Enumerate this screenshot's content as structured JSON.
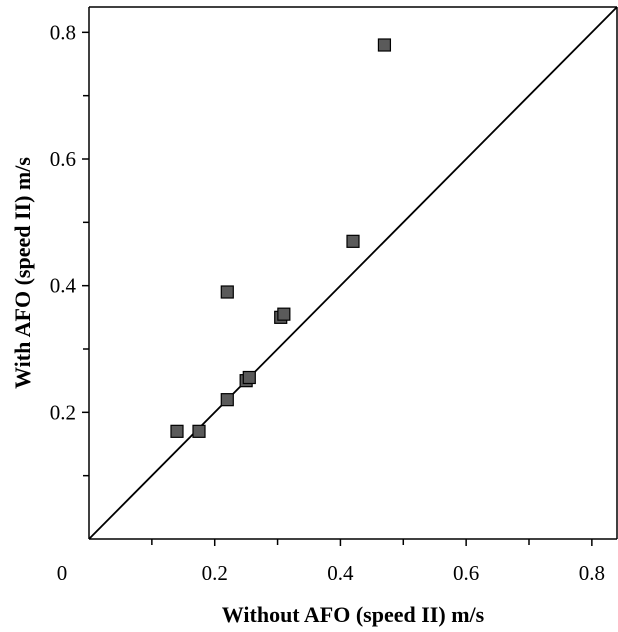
{
  "chart_data": {
    "type": "scatter",
    "title": "",
    "xlabel": "Without AFO (speed II) m/s",
    "ylabel": "With AFO (speed II) m/s",
    "xlim": [
      0,
      0.84
    ],
    "ylim": [
      0,
      0.84
    ],
    "x_origin_label": "0",
    "x_ticks": [
      {
        "value": 0.2,
        "label": "0.2"
      },
      {
        "value": 0.4,
        "label": "0.4"
      },
      {
        "value": 0.6,
        "label": "0.6"
      },
      {
        "value": 0.8,
        "label": "0.8"
      }
    ],
    "x_minor_ticks": [
      0.1,
      0.3,
      0.5,
      0.7
    ],
    "y_ticks": [
      {
        "value": 0.2,
        "label": "0.2"
      },
      {
        "value": 0.4,
        "label": "0.4"
      },
      {
        "value": 0.6,
        "label": "0.6"
      },
      {
        "value": 0.8,
        "label": "0.8"
      }
    ],
    "y_minor_ticks": [
      0.1,
      0.3,
      0.5,
      0.7
    ],
    "reference_line": "identity",
    "marker": "square",
    "marker_color": "#5a5a5a",
    "grid": false,
    "series": [
      {
        "points": [
          {
            "x": 0.14,
            "y": 0.17
          },
          {
            "x": 0.175,
            "y": 0.17
          },
          {
            "x": 0.22,
            "y": 0.22
          },
          {
            "x": 0.22,
            "y": 0.39
          },
          {
            "x": 0.25,
            "y": 0.25
          },
          {
            "x": 0.255,
            "y": 0.255
          },
          {
            "x": 0.305,
            "y": 0.35
          },
          {
            "x": 0.31,
            "y": 0.355
          },
          {
            "x": 0.42,
            "y": 0.47
          },
          {
            "x": 0.47,
            "y": 0.78
          }
        ]
      }
    ]
  }
}
